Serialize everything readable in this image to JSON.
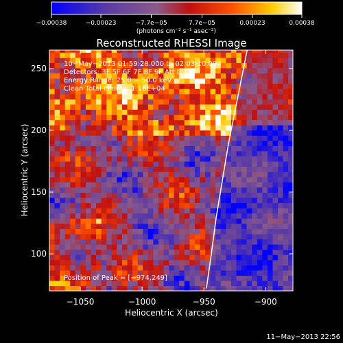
{
  "chart_data": {
    "type": "heatmap",
    "title": "Reconstructed RHESSI Image",
    "xlabel": "Heliocentric X (arcsec)",
    "ylabel": "Heliocentric Y (arcsec)",
    "xlim": [
      -1075,
      -878
    ],
    "ylim": [
      70,
      265
    ],
    "x_ticks": [
      -1050,
      -1000,
      -950,
      -900
    ],
    "x_tick_labels": [
      "−1050",
      "−1000",
      "−950",
      "−900"
    ],
    "y_ticks": [
      100,
      150,
      200,
      250
    ],
    "y_tick_labels": [
      "100",
      "150",
      "200",
      "250"
    ],
    "grid": false,
    "colorbar": {
      "range": [
        -0.00038,
        0.00038
      ],
      "ticks": [
        -0.00038,
        -0.00023,
        -7.7e-05,
        7.7e-05,
        0.00023,
        0.00038
      ],
      "tick_labels": [
        "−0.00038",
        "−0.00023",
        "−7.7e−05",
        "7.7e−05",
        "0.00023",
        "0.00038"
      ],
      "unit": "(photons cm⁻² s⁻¹ asec⁻²)",
      "colors": [
        "#0000ff",
        "#5a3ba5",
        "#8a5a8a",
        "#c01010",
        "#ff5000",
        "#ffcc00",
        "#ffffff"
      ]
    },
    "annotations": {
      "time_range": "10−May−2013 01:59:28.000 to 02:03:10.000",
      "detectors": "Detectors: 3F 5F 6F 7F 8F 9F  Att 0",
      "energy": "Energy Range: 25.0 − 50.0 keV",
      "clean": "Clean     Total counts: 1.16E+04",
      "peak": "Position of Peak = [−974,249]"
    },
    "peak_position": [
      -974,
      249
    ],
    "total_counts": 11600,
    "limb_curve": {
      "x": [
        -948,
        -944,
        -940,
        -935,
        -930,
        -925,
        -920,
        -915
      ],
      "y": [
        72,
        100,
        130,
        160,
        190,
        215,
        240,
        265
      ]
    },
    "regions": {
      "bright_band_top": {
        "x": [
          -1075,
          -930
        ],
        "y": [
          195,
          265
        ]
      },
      "blue_disk_side": {
        "x": [
          -945,
          -878
        ],
        "y": [
          75,
          205
        ]
      }
    }
  },
  "footer": {
    "timestamp": "11−May−2013 22:56"
  }
}
